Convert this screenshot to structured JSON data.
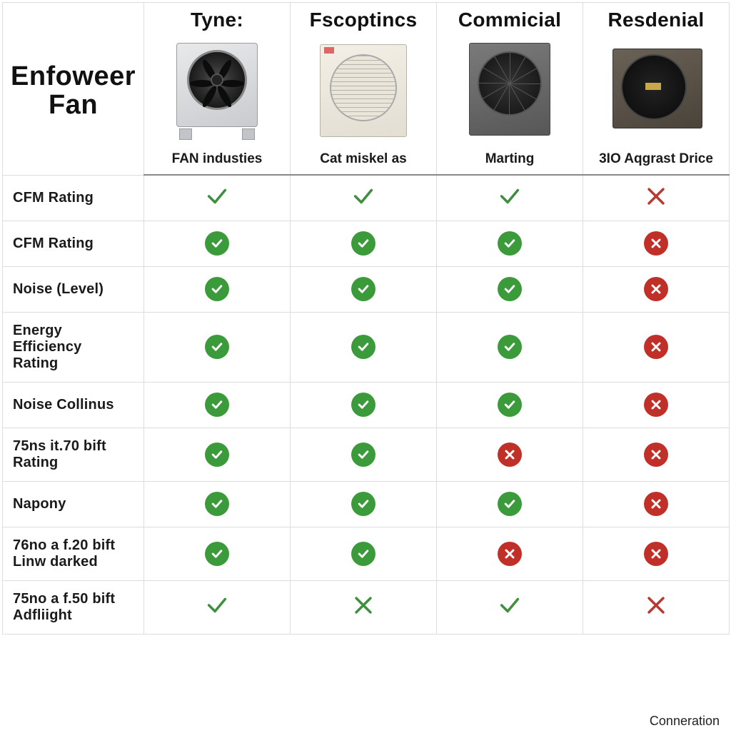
{
  "title": "Enfoweer Fan",
  "footer": "Conneration",
  "colors": {
    "green": "#3b9b3b",
    "red": "#c03028",
    "thin_green": "#3f8f3f",
    "thin_red": "#b73a32",
    "border": "#dddddd",
    "header_divider": "#888888",
    "text": "#1a1a1a"
  },
  "columns": [
    {
      "header": "Tyne:",
      "sublabel": "FAN industies"
    },
    {
      "header": "Fscoptincs",
      "sublabel": "Cat miskel as"
    },
    {
      "header": "Commicial",
      "sublabel": "Marting"
    },
    {
      "header": "Resdenial",
      "sublabel": "3IO Aqgrast Drice"
    }
  ],
  "icon_types": {
    "tc": "thin green check",
    "tx": "thin red x",
    "bc": "solid green badge check",
    "bx": "solid red badge x",
    "txg": "thin green x"
  },
  "rows": [
    {
      "label": "CFM Rating",
      "cells": [
        "tc",
        "tc",
        "tc",
        "tx"
      ]
    },
    {
      "label": "CFM Rating",
      "cells": [
        "bc",
        "bc",
        "bc",
        "bx"
      ]
    },
    {
      "label": "Noise (Level)",
      "cells": [
        "bc",
        "bc",
        "bc",
        "bx"
      ]
    },
    {
      "label": "Energy Efficiency\nRating",
      "cells": [
        "bc",
        "bc",
        "bc",
        "bx"
      ]
    },
    {
      "label": "Noise Collinus",
      "cells": [
        "bc",
        "bc",
        "bc",
        "bx"
      ]
    },
    {
      "label": "75ns it.70 bift\nRating",
      "cells": [
        "bc",
        "bc",
        "bx",
        "bx"
      ]
    },
    {
      "label": "Napony",
      "cells": [
        "bc",
        "bc",
        "bc",
        "bx"
      ]
    },
    {
      "label": "76no a f.20 bift\nLinw darked",
      "cells": [
        "bc",
        "bc",
        "bx",
        "bx"
      ]
    },
    {
      "label": "75no a f.50  bift\nAdfliight",
      "cells": [
        "tc",
        "txg",
        "tc",
        "tx"
      ]
    }
  ]
}
